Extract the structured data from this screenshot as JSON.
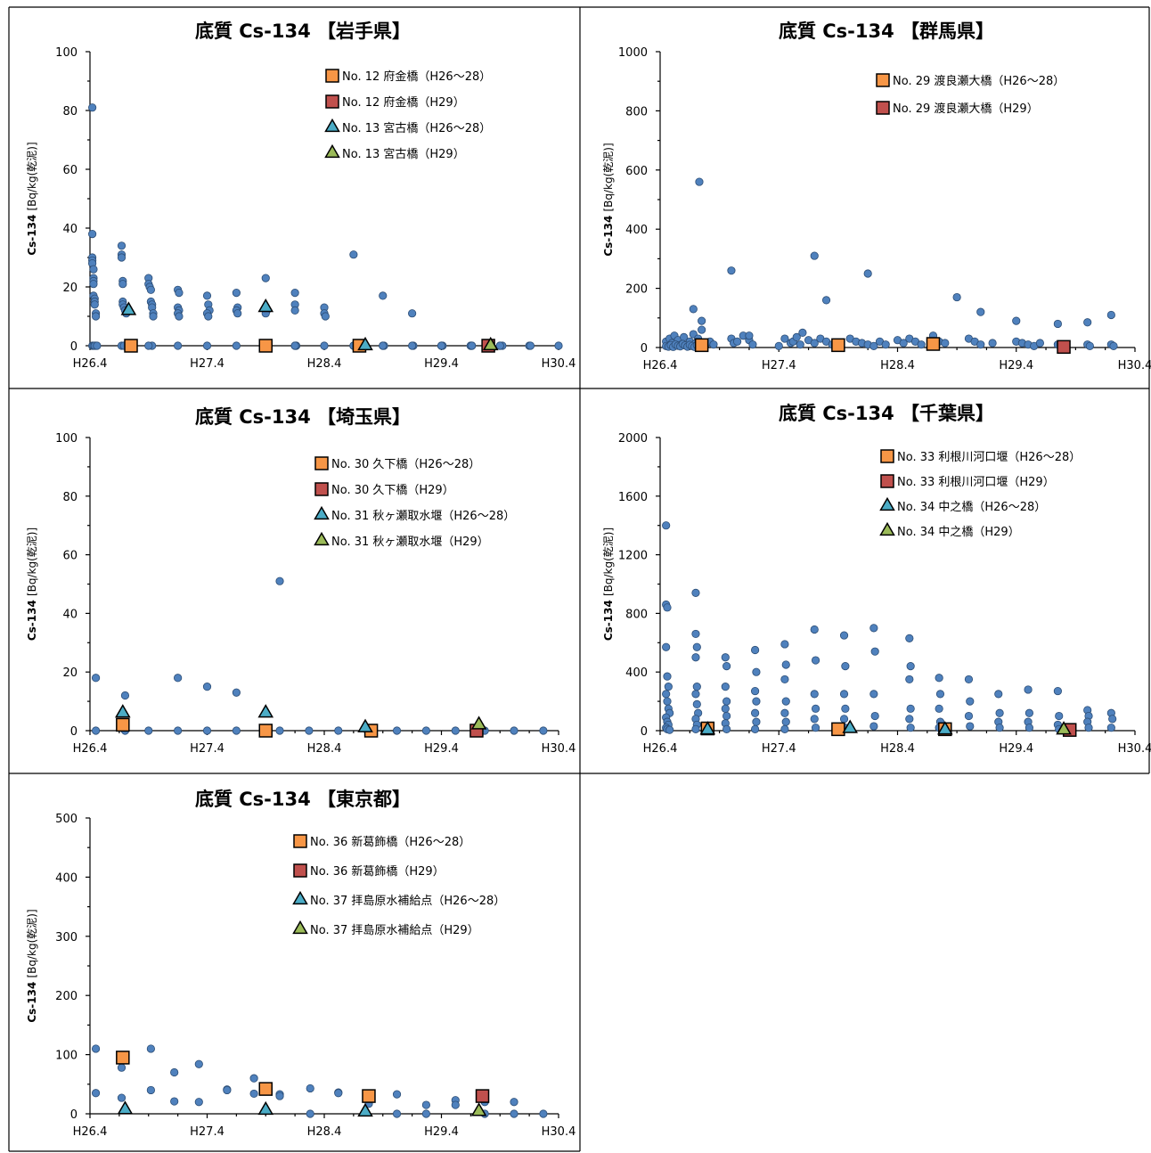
{
  "chart_data": [
    {
      "type": "scatter",
      "title": "底質 Cs-134 【岩手県】",
      "ylabel_main": "Cs-134",
      "ylabel_unit": "[Bq/kg(乾泥)]",
      "ylim": [
        0,
        100
      ],
      "yticks": [
        0,
        20,
        40,
        60,
        80,
        100
      ],
      "xlim": [
        0,
        4
      ],
      "xticks": [
        "H26.4",
        "H27.4",
        "H28.4",
        "H29.4",
        "H30.4"
      ],
      "legend_position": "top-right",
      "series": [
        {
          "name": "",
          "marker": "dot",
          "color": "#4f81bd",
          "x": [
            0.02,
            0.02,
            0.02,
            0.02,
            0.02,
            0.03,
            0.03,
            0.03,
            0.03,
            0.03,
            0.04,
            0.04,
            0.04,
            0.05,
            0.05,
            0.05,
            0.02,
            0.03,
            0.04,
            0.06,
            0.27,
            0.27,
            0.27,
            0.28,
            0.28,
            0.28,
            0.28,
            0.29,
            0.3,
            0.31,
            0.27,
            0.29,
            0.5,
            0.5,
            0.51,
            0.52,
            0.52,
            0.53,
            0.53,
            0.54,
            0.54,
            0.53,
            0.5,
            0.75,
            0.76,
            0.75,
            0.76,
            0.75,
            0.76,
            0.75,
            1.0,
            1.01,
            1.02,
            1.0,
            1.01,
            1.0,
            1.25,
            1.26,
            1.25,
            1.26,
            1.25,
            1.5,
            1.5,
            1.51,
            1.5,
            1.5,
            1.52,
            1.5,
            1.75,
            1.75,
            1.75,
            1.76,
            1.76,
            1.75,
            1.75,
            2.0,
            2.0,
            2.01,
            2.0,
            2.25,
            2.25,
            2.26,
            2.25,
            2.5,
            2.5,
            2.51,
            2.5,
            2.75,
            2.76,
            2.75,
            3.0,
            3.01,
            3.0,
            3.25,
            3.26,
            3.25,
            3.5,
            3.52,
            3.75,
            3.76,
            4.0,
            3.5,
            3.26
          ],
          "y": [
            81,
            38,
            30,
            29,
            28,
            26,
            23,
            22,
            21,
            17,
            16,
            15,
            14,
            11,
            10,
            0,
            0,
            0,
            0,
            0,
            34,
            31,
            30,
            22,
            21,
            15,
            14,
            13,
            12,
            11,
            0,
            0,
            23,
            21,
            20,
            19,
            15,
            14,
            13,
            11,
            10,
            0,
            0,
            19,
            18,
            13,
            12,
            11,
            10,
            0,
            17,
            14,
            12,
            11,
            10,
            0,
            18,
            13,
            12,
            11,
            0,
            23,
            13,
            12,
            11,
            0,
            0,
            0,
            18,
            14,
            12,
            0,
            0,
            0,
            0,
            13,
            11,
            10,
            0,
            31,
            0,
            0,
            0,
            17,
            0,
            0,
            0,
            11,
            0,
            0,
            0,
            0,
            0,
            0,
            0,
            0,
            0,
            0,
            0,
            0,
            0,
            0,
            0
          ]
        },
        {
          "name": "No. 12 府金橋（H26〜28）",
          "marker": "square",
          "color": "#f79646",
          "x": [
            0.35,
            1.5,
            2.3
          ],
          "y": [
            0,
            0,
            0
          ]
        },
        {
          "name": "No. 12 府金橋（H29）",
          "marker": "square",
          "color": "#c0504d",
          "x": [
            3.4
          ],
          "y": [
            0
          ]
        },
        {
          "name": "No. 13 宮古橋（H26〜28）",
          "marker": "triangle",
          "color": "#4bacc6",
          "x": [
            0.33,
            1.5,
            2.35
          ],
          "y": [
            12,
            13,
            0
          ]
        },
        {
          "name": "No. 13 宮古橋（H29）",
          "marker": "triangle",
          "color": "#9bbb59",
          "x": [
            3.42
          ],
          "y": [
            0
          ]
        }
      ]
    },
    {
      "type": "scatter",
      "title": "底質 Cs-134 【群馬県】",
      "ylabel_main": "Cs-134",
      "ylabel_unit": "[Bq/kg(乾泥)]",
      "ylim": [
        0,
        1000
      ],
      "yticks": [
        0,
        200,
        400,
        600,
        800,
        1000
      ],
      "xlim": [
        0,
        4
      ],
      "xticks": [
        "H26.4",
        "H27.4",
        "H28.4",
        "H29.4",
        "H30.4"
      ],
      "legend_position": "top-right",
      "series": [
        {
          "name": "",
          "marker": "dot",
          "color": "#4f81bd",
          "x": [
            0.05,
            0.08,
            0.1,
            0.12,
            0.15,
            0.18,
            0.2,
            0.25,
            0.28,
            0.3,
            0.32,
            0.35,
            0.05,
            0.07,
            0.09,
            0.11,
            0.13,
            0.15,
            0.17,
            0.19,
            0.21,
            0.23,
            0.25,
            0.27,
            0.29,
            0.31,
            0.33,
            0.35,
            0.4,
            0.42,
            0.45,
            0.6,
            0.62,
            0.65,
            0.7,
            0.75,
            0.78,
            1.0,
            1.05,
            1.1,
            1.12,
            1.15,
            1.18,
            1.2,
            1.25,
            1.3,
            1.35,
            1.4,
            1.45,
            1.6,
            1.65,
            1.7,
            1.75,
            1.8,
            1.85,
            1.9,
            2.0,
            2.05,
            2.1,
            2.15,
            2.2,
            2.3,
            2.35,
            2.4,
            2.6,
            2.65,
            2.7,
            2.8,
            3.0,
            3.05,
            3.1,
            3.15,
            3.2,
            3.35,
            3.4,
            3.6,
            3.62,
            3.8,
            3.82,
            0.33,
            0.28,
            0.35,
            0.75,
            0.6,
            1.3,
            1.4,
            1.75,
            2.5,
            2.7,
            3.0,
            3.35,
            3.6,
            3.8
          ],
          "y": [
            20,
            30,
            15,
            40,
            25,
            10,
            35,
            20,
            45,
            15,
            30,
            60,
            5,
            3,
            8,
            2,
            10,
            6,
            4,
            12,
            7,
            3,
            9,
            5,
            2,
            8,
            4,
            6,
            15,
            20,
            10,
            30,
            15,
            20,
            40,
            25,
            10,
            5,
            30,
            15,
            20,
            35,
            10,
            50,
            25,
            15,
            30,
            20,
            10,
            30,
            20,
            15,
            10,
            5,
            20,
            10,
            25,
            15,
            30,
            20,
            10,
            40,
            20,
            15,
            30,
            20,
            10,
            15,
            20,
            15,
            10,
            5,
            15,
            10,
            5,
            10,
            5,
            10,
            5,
            560,
            130,
            90,
            40,
            260,
            310,
            160,
            250,
            170,
            120,
            90,
            80,
            85,
            110
          ]
        },
        {
          "name": "No. 29 渡良瀬大橋（H26〜28）",
          "marker": "square",
          "color": "#f79646",
          "x": [
            0.35,
            1.5,
            2.3
          ],
          "y": [
            8,
            8,
            12
          ]
        },
        {
          "name": "No. 29 渡良瀬大橋（H29）",
          "marker": "square",
          "color": "#c0504d",
          "x": [
            3.4
          ],
          "y": [
            2
          ]
        }
      ]
    },
    {
      "type": "scatter",
      "title": "底質 Cs-134 【埼玉県】",
      "ylabel_main": "Cs-134",
      "ylabel_unit": "[Bq/kg(乾泥)]",
      "ylim": [
        0,
        100
      ],
      "yticks": [
        0,
        20,
        40,
        60,
        80,
        100
      ],
      "xlim": [
        0,
        4
      ],
      "xticks": [
        "H26.4",
        "H27.4",
        "H28.4",
        "H29.4",
        "H30.4"
      ],
      "legend_position": "top-right",
      "series": [
        {
          "name": "",
          "marker": "dot",
          "color": "#4f81bd",
          "x": [
            0.05,
            0.05,
            0.3,
            0.3,
            0.5,
            0.75,
            0.75,
            1.0,
            1.0,
            1.25,
            1.25,
            1.5,
            1.62,
            1.62,
            1.87,
            2.12,
            2.37,
            2.62,
            2.87,
            3.12,
            3.37,
            3.62,
            3.87
          ],
          "y": [
            18,
            0,
            12,
            0,
            0,
            18,
            0,
            15,
            0,
            13,
            0,
            0,
            51,
            0,
            0,
            0,
            0,
            0,
            0,
            0,
            0,
            0,
            0
          ]
        },
        {
          "name": "No. 30 久下橋（H26〜28）",
          "marker": "square",
          "color": "#f79646",
          "x": [
            0.28,
            1.5,
            2.4
          ],
          "y": [
            2,
            0,
            0
          ]
        },
        {
          "name": "No. 30 久下橋（H29）",
          "marker": "square",
          "color": "#c0504d",
          "x": [
            3.3
          ],
          "y": [
            0
          ]
        },
        {
          "name": "No. 31 秋ヶ瀬取水堰（H26〜28）",
          "marker": "triangle",
          "color": "#4bacc6",
          "x": [
            0.28,
            1.5,
            2.35
          ],
          "y": [
            6,
            6,
            1
          ]
        },
        {
          "name": "No. 31 秋ヶ瀬取水堰（H29）",
          "marker": "triangle",
          "color": "#9bbb59",
          "x": [
            3.32
          ],
          "y": [
            2
          ]
        }
      ]
    },
    {
      "type": "scatter",
      "title": "底質 Cs-134 【千葉県】",
      "ylabel_main": "Cs-134",
      "ylabel_unit": "[Bq/kg(乾泥)]",
      "ylim": [
        0,
        2000
      ],
      "yticks": [
        0,
        400,
        800,
        1200,
        1600,
        2000
      ],
      "xlim": [
        0,
        4
      ],
      "xticks": [
        "H26.4",
        "H27.4",
        "H28.4",
        "H29.4",
        "H30.4"
      ],
      "legend_position": "top-right",
      "series": [
        {
          "name": "",
          "marker": "dot",
          "color": "#4f81bd",
          "x": [
            0.05,
            0.05,
            0.06,
            0.05,
            0.06,
            0.07,
            0.05,
            0.06,
            0.07,
            0.08,
            0.05,
            0.06,
            0.07,
            0.05,
            0.06,
            0.08,
            0.3,
            0.3,
            0.31,
            0.3,
            0.31,
            0.3,
            0.31,
            0.32,
            0.3,
            0.31,
            0.3,
            0.55,
            0.56,
            0.55,
            0.56,
            0.55,
            0.56,
            0.55,
            0.56,
            0.8,
            0.81,
            0.8,
            0.81,
            0.8,
            0.81,
            0.8,
            1.05,
            1.06,
            1.05,
            1.06,
            1.05,
            1.06,
            1.05,
            1.3,
            1.31,
            1.3,
            1.31,
            1.3,
            1.31,
            1.55,
            1.56,
            1.55,
            1.56,
            1.55,
            1.56,
            1.8,
            1.81,
            1.8,
            1.81,
            1.8,
            2.1,
            2.11,
            2.1,
            2.11,
            2.1,
            2.11,
            2.35,
            2.36,
            2.35,
            2.36,
            2.35,
            2.6,
            2.61,
            2.6,
            2.61,
            2.85,
            2.86,
            2.85,
            2.86,
            3.1,
            3.11,
            3.1,
            3.11,
            3.35,
            3.36,
            3.35,
            3.36,
            3.6,
            3.61,
            3.6,
            3.61,
            3.8,
            3.81,
            3.8
          ],
          "y": [
            1400,
            860,
            840,
            570,
            370,
            300,
            250,
            200,
            150,
            120,
            90,
            60,
            40,
            20,
            10,
            5,
            940,
            660,
            570,
            500,
            300,
            250,
            180,
            120,
            80,
            40,
            10,
            500,
            440,
            300,
            200,
            150,
            100,
            50,
            10,
            550,
            400,
            270,
            200,
            120,
            60,
            10,
            590,
            450,
            350,
            200,
            120,
            60,
            10,
            690,
            480,
            250,
            150,
            80,
            20,
            650,
            440,
            250,
            150,
            80,
            20,
            700,
            540,
            250,
            100,
            30,
            630,
            440,
            350,
            150,
            80,
            20,
            360,
            250,
            150,
            60,
            20,
            350,
            200,
            100,
            30,
            250,
            120,
            60,
            20,
            280,
            120,
            60,
            20,
            270,
            100,
            40,
            10,
            140,
            100,
            60,
            20,
            120,
            80,
            20
          ]
        },
        {
          "name": "No. 33 利根川河口堰（H26〜28）",
          "marker": "square",
          "color": "#f79646",
          "x": [
            0.4,
            1.5,
            2.4
          ],
          "y": [
            15,
            10,
            10
          ]
        },
        {
          "name": "No. 33 利根川河口堰（H29）",
          "marker": "square",
          "color": "#c0504d",
          "x": [
            3.45
          ],
          "y": [
            5
          ]
        },
        {
          "name": "No. 34 中之橋（H26〜28）",
          "marker": "triangle",
          "color": "#4bacc6",
          "x": [
            0.4,
            1.6,
            2.4
          ],
          "y": [
            5,
            15,
            5
          ]
        },
        {
          "name": "No. 34 中之橋（H29）",
          "marker": "triangle",
          "color": "#9bbb59",
          "x": [
            3.4
          ],
          "y": [
            5
          ]
        }
      ]
    },
    {
      "type": "scatter",
      "title": "底質 Cs-134 【東京都】",
      "ylabel_main": "Cs-134",
      "ylabel_unit": "[Bq/kg(乾泥)]",
      "ylim": [
        0,
        500
      ],
      "yticks": [
        0,
        100,
        200,
        300,
        400,
        500
      ],
      "xlim": [
        0,
        4
      ],
      "xticks": [
        "H26.4",
        "H27.4",
        "H28.4",
        "H29.4",
        "H30.4"
      ],
      "legend_position": "top-right",
      "series": [
        {
          "name": "",
          "marker": "dot",
          "color": "#4f81bd",
          "x": [
            0.05,
            0.05,
            0.27,
            0.27,
            0.52,
            0.52,
            0.72,
            0.72,
            0.93,
            0.93,
            1.17,
            1.17,
            1.4,
            1.4,
            1.62,
            1.62,
            1.88,
            1.88,
            2.12,
            2.12,
            2.38,
            2.38,
            2.62,
            2.62,
            2.87,
            2.87,
            3.12,
            3.12,
            3.37,
            3.37,
            3.62,
            3.62,
            3.87
          ],
          "y": [
            110,
            35,
            78,
            27,
            110,
            40,
            70,
            21,
            84,
            20,
            41,
            40,
            60,
            34,
            33,
            30,
            43,
            0,
            36,
            35,
            34,
            17,
            33,
            0,
            15,
            0,
            23,
            15,
            20,
            0,
            20,
            0,
            0
          ]
        },
        {
          "name": "No. 36 新葛飾橋（H26〜28）",
          "marker": "square",
          "color": "#f79646",
          "x": [
            0.28,
            1.5,
            2.38
          ],
          "y": [
            95,
            42,
            30
          ]
        },
        {
          "name": "No. 36 新葛飾橋（H29）",
          "marker": "square",
          "color": "#c0504d",
          "x": [
            3.35
          ],
          "y": [
            30
          ]
        },
        {
          "name": "No. 37 拝島原水補給点（H26〜28）",
          "marker": "triangle",
          "color": "#4bacc6",
          "x": [
            0.3,
            1.5,
            2.35
          ],
          "y": [
            7,
            6,
            3
          ]
        },
        {
          "name": "No. 37 拝島原水補給点（H29）",
          "marker": "triangle",
          "color": "#9bbb59",
          "x": [
            3.32
          ],
          "y": [
            4
          ]
        }
      ]
    }
  ]
}
